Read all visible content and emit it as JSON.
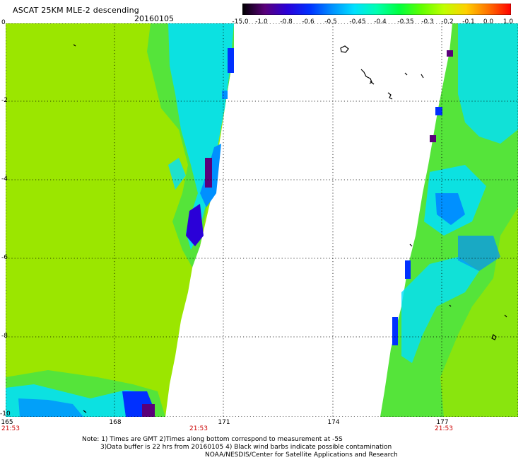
{
  "header": {
    "title": "ASCAT 25KM MLE-2 descending",
    "date": "20160105"
  },
  "colorbar": {
    "labels": [
      "-15.0",
      "-1.0",
      "-0.8",
      "-0.6",
      "-0.5",
      "-0.45",
      "-0.4",
      "-0.35",
      "-0.3",
      "-0.2",
      "-0.1",
      "0.0",
      "1.0"
    ],
    "colors": [
      "#000000",
      "#5a007a",
      "#2a00d8",
      "#0030ff",
      "#0090ff",
      "#00e0ff",
      "#00ffb0",
      "#00ff40",
      "#60ff00",
      "#c0ff00",
      "#ffd000",
      "#ff7000",
      "#ff0000"
    ]
  },
  "axes": {
    "y_labels": [
      "0",
      "-2",
      "-4",
      "-6",
      "-8",
      "-10"
    ],
    "x_labels": [
      "165",
      "168",
      "171",
      "174",
      "177"
    ],
    "time_labels": [
      "21:53",
      "21:53",
      "21:53"
    ]
  },
  "notes": {
    "line1": "Note: 1) Times are GMT 2)Times along bottom correspond to measurement at -5S",
    "line2": "3)Data buffer is 22 hrs from 20160105 4) Black wind barbs indicate possible contamination",
    "line3": "NOAA/NESDIS/Center for Satellite Applications and Research"
  }
}
